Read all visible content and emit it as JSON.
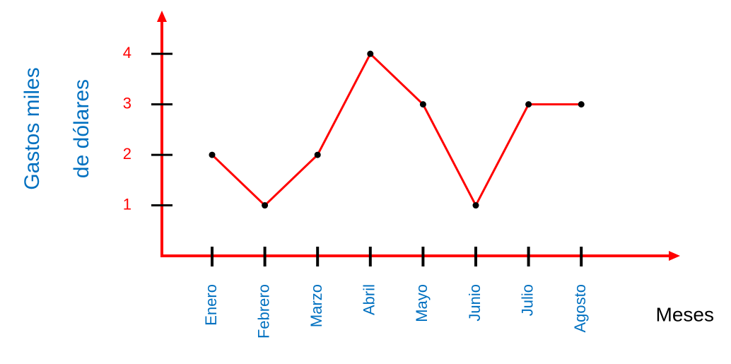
{
  "chart_data": {
    "type": "line",
    "x_label": "Meses",
    "y_label": [
      "Gastos miles",
      "de dólares"
    ],
    "categories": [
      "Enero",
      "Febrero",
      "Marzo",
      "Abril",
      "Mayo",
      "Junio",
      "Julio",
      "Agosto"
    ],
    "series": [
      {
        "color": "#ff0000",
        "values": [
          2,
          1,
          2,
          4,
          3,
          1,
          3,
          3
        ]
      }
    ],
    "ylim": [
      0,
      4.8
    ],
    "yticks": [
      1,
      2,
      3,
      4
    ],
    "axis_color": "#ff0000",
    "label_color": "#0070c0",
    "tick_label_color": "#ff0000"
  }
}
